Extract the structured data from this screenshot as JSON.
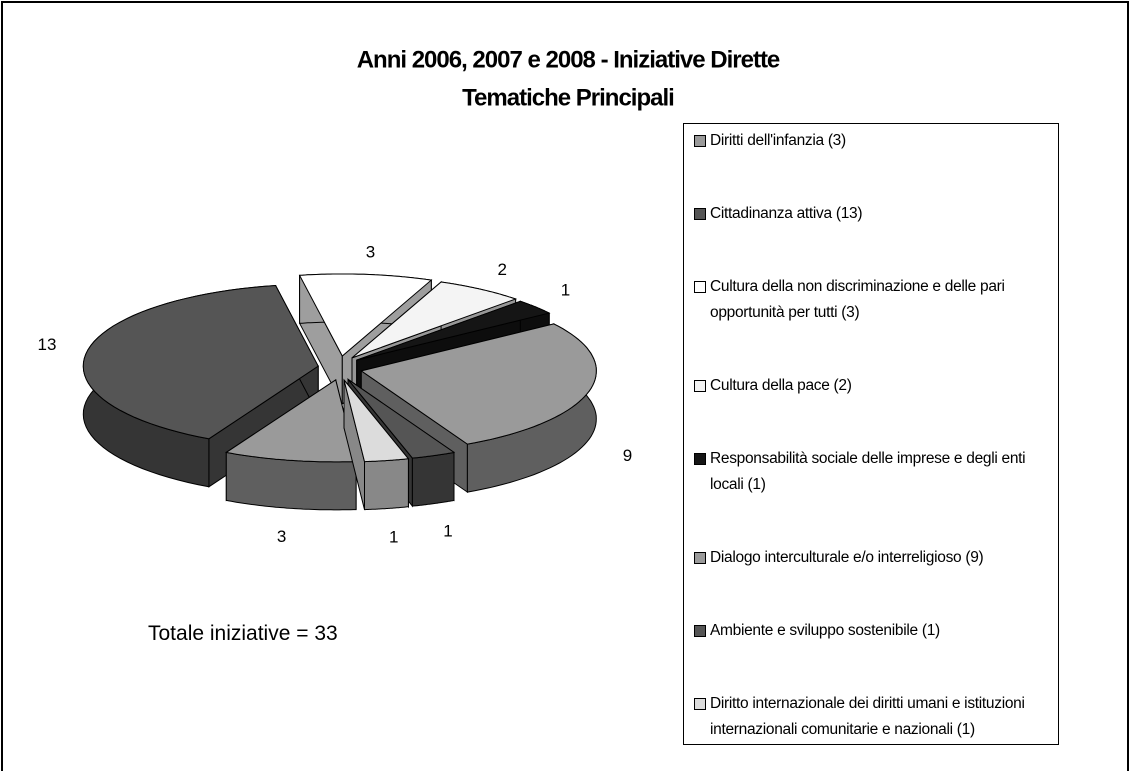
{
  "chart_data": {
    "type": "pie3d",
    "title": [
      "Anni 2006, 2007 e 2008 - Iniziative Dirette",
      "Tematiche Principali"
    ],
    "categories": [
      "Diritti dell'infanzia (3)",
      "Cittadinanza attiva (13)",
      "Cultura della non discriminazione e delle pari opportunità per tutti (3)",
      "Cultura della pace (2)",
      "Responsabilità sociale delle imprese e degli enti locali (1)",
      "Dialogo interculturale e/o interreligioso (9)",
      "Ambiente e sviluppo sostenibile (1)",
      "Diritto internazionale dei diritti umani e istituzioni internazionali comunitarie e nazionali (1)"
    ],
    "values": [
      3,
      13,
      3,
      2,
      1,
      9,
      1,
      1
    ],
    "colors": [
      "#9a9a9a",
      "#555555",
      "#ffffff",
      "#f4f4f4",
      "#151515",
      "#9a9a9a",
      "#555555",
      "#dcdcdc"
    ],
    "annotation": "Totale iniziative = 33",
    "legend": "right"
  }
}
